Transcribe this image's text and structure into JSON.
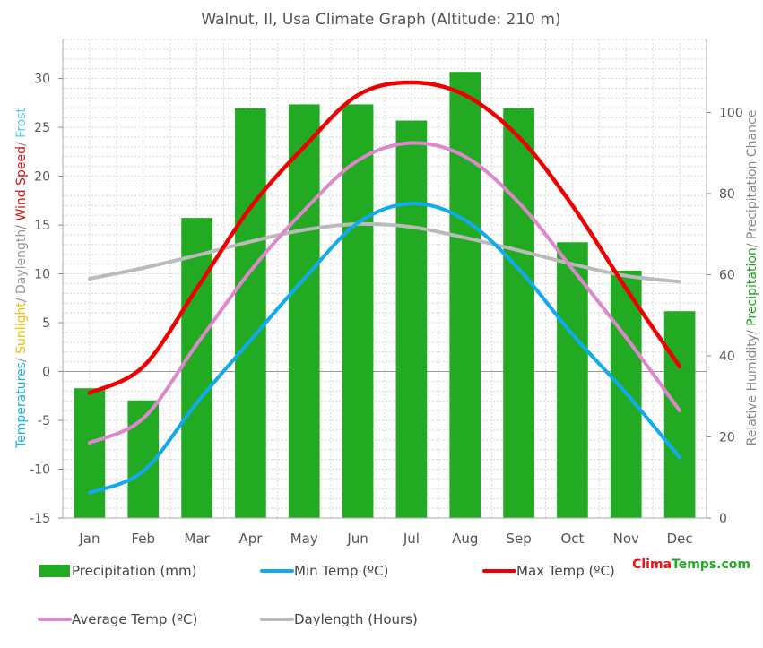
{
  "chart_data": {
    "type": "bar",
    "title": "Walnut, Il, Usa Climate Graph (Altitude: 210 m)",
    "categories": [
      "Jan",
      "Feb",
      "Mar",
      "Apr",
      "May",
      "Jun",
      "Jul",
      "Aug",
      "Sep",
      "Oct",
      "Nov",
      "Dec"
    ],
    "left_axis": {
      "label_parts": [
        {
          "text": "Temperatures",
          "color": "#1ab0e8"
        },
        {
          "text": "/ ",
          "color": "#888888"
        },
        {
          "text": "Sunlight",
          "color": "#f0c000"
        },
        {
          "text": "/ ",
          "color": "#888888"
        },
        {
          "text": "Daylength",
          "color": "#999999"
        },
        {
          "text": "/ ",
          "color": "#888888"
        },
        {
          "text": "Wind Speed",
          "color": "#dd1111"
        },
        {
          "text": "/ ",
          "color": "#888888"
        },
        {
          "text": "Frost",
          "color": "#55ccee"
        }
      ],
      "ylim": [
        -15,
        34
      ],
      "ticks": [
        -15,
        -10,
        -5,
        0,
        5,
        10,
        15,
        20,
        25,
        30
      ]
    },
    "right_axis": {
      "label_parts": [
        {
          "text": "Relative Humidity",
          "color": "#888888"
        },
        {
          "text": "/ ",
          "color": "#888888"
        },
        {
          "text": "Precipitation",
          "color": "#22a022"
        },
        {
          "text": "/ ",
          "color": "#888888"
        },
        {
          "text": "Precipitation Chance",
          "color": "#888888"
        }
      ],
      "ylim": [
        0,
        118
      ],
      "ticks": [
        0,
        20,
        40,
        60,
        80,
        100
      ]
    },
    "grid": true,
    "series": [
      {
        "name": "Precipitation (mm)",
        "kind": "bar",
        "axis": "right",
        "color": "#22aa22",
        "values": [
          32,
          29,
          74,
          101,
          102,
          102,
          98,
          110,
          101,
          68,
          61,
          51
        ]
      },
      {
        "name": "Min Temp (ºC)",
        "kind": "line",
        "axis": "left",
        "color": "#11aaee",
        "values": [
          -12.4,
          -10.2,
          -3.2,
          3.2,
          9.5,
          15.2,
          17.2,
          15.5,
          10.5,
          3.8,
          -2.2,
          -8.8
        ]
      },
      {
        "name": "Max Temp (ºC)",
        "kind": "line",
        "axis": "left",
        "color": "#ee0000",
        "values": [
          -2.2,
          0.5,
          8.5,
          16.8,
          23.0,
          28.3,
          29.6,
          28.3,
          24.0,
          17.0,
          8.5,
          0.5
        ]
      },
      {
        "name": "Average Temp (ºC)",
        "kind": "line",
        "axis": "left",
        "color": "#dd88cc",
        "values": [
          -7.3,
          -4.8,
          2.8,
          10.3,
          16.5,
          21.6,
          23.4,
          22.0,
          17.3,
          10.5,
          3.5,
          -4.0
        ]
      },
      {
        "name": "Daylength (Hours)",
        "kind": "line",
        "axis": "left",
        "color": "#bbbbbb",
        "values": [
          9.5,
          10.6,
          11.9,
          13.3,
          14.5,
          15.1,
          14.8,
          13.7,
          12.4,
          11.0,
          9.8,
          9.2
        ]
      }
    ],
    "legend_position": "bottom",
    "watermark": {
      "part1": "Clima",
      "part2": "Temps",
      "part3": ".com",
      "color1": "#ee1111",
      "color2": "#22aa22",
      "color3": "#22aa22"
    }
  }
}
